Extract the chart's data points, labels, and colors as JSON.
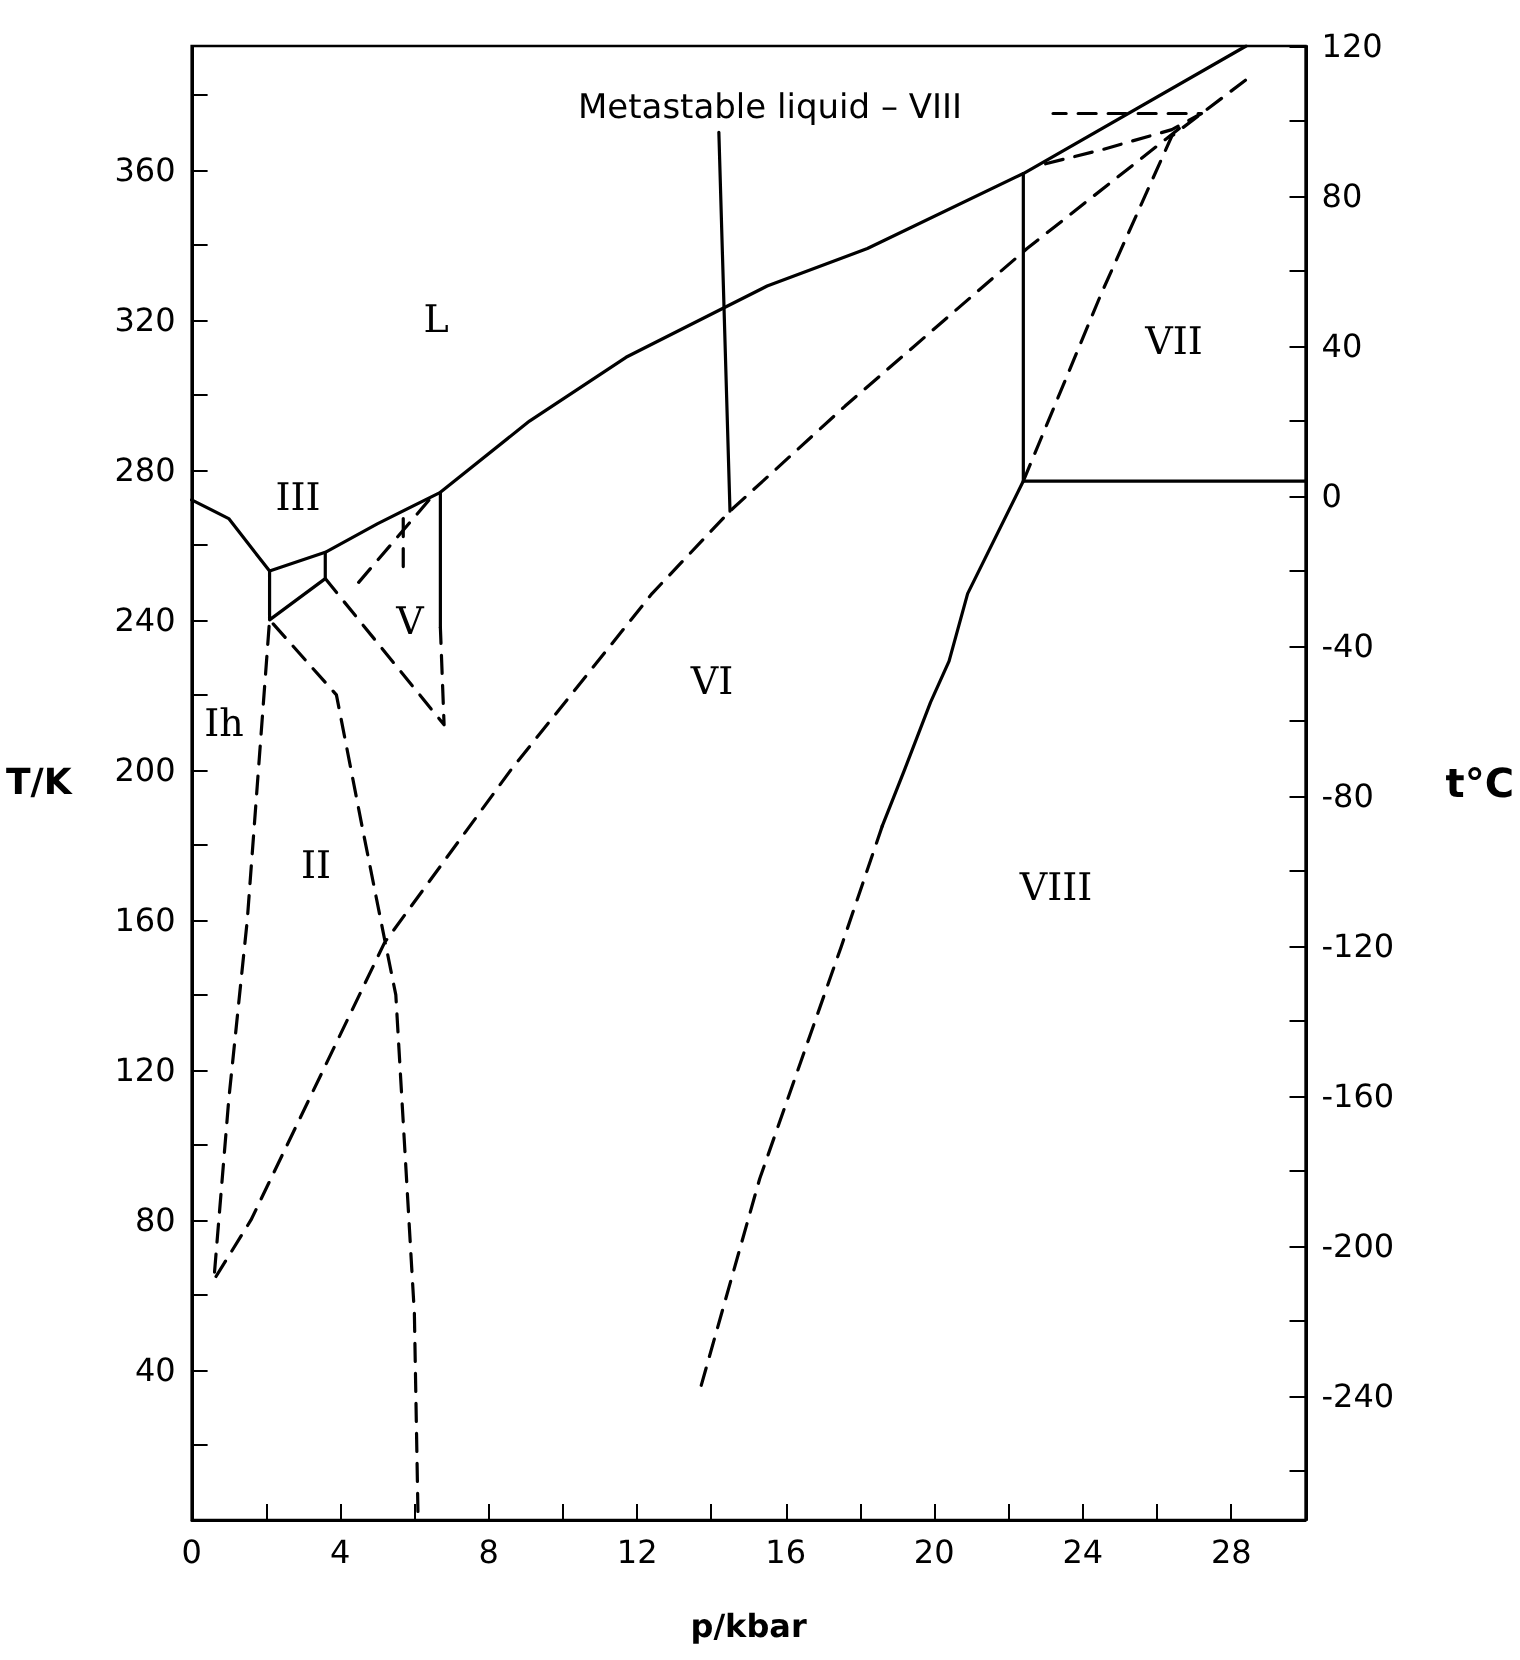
{
  "chart_data": {
    "type": "line",
    "xlabel": "p/kbar",
    "ylabel": "T/K",
    "y2label": "t°C",
    "xlim": [
      0,
      30
    ],
    "ylim": [
      0,
      393
    ],
    "y2lim": [
      -273,
      120
    ],
    "xticks": [
      0,
      {
        "value": 2,
        "label": null
      },
      4,
      {
        "value": 6,
        "label": null
      },
      8,
      {
        "value": 10,
        "label": null
      },
      12,
      {
        "value": 14,
        "label": null
      },
      16,
      {
        "value": 18,
        "label": null
      },
      20,
      {
        "value": 22,
        "label": null
      },
      24,
      {
        "value": 26,
        "label": null
      },
      28
    ],
    "yticks": [
      {
        "value": 20,
        "label": null
      },
      40,
      {
        "value": 60,
        "label": null
      },
      80,
      {
        "value": 100,
        "label": null
      },
      120,
      {
        "value": 140,
        "label": null
      },
      160,
      {
        "value": 180,
        "label": null
      },
      200,
      {
        "value": 220,
        "label": null
      },
      240,
      {
        "value": 260,
        "label": null
      },
      280,
      {
        "value": 300,
        "label": null
      },
      320,
      {
        "value": 340,
        "label": null
      },
      360,
      {
        "value": 380,
        "label": null
      }
    ],
    "y2ticks": [
      {
        "value": -260,
        "label": null
      },
      -240,
      {
        "value": -220,
        "label": null
      },
      -200,
      {
        "value": -180,
        "label": null
      },
      -160,
      {
        "value": -140,
        "label": null
      },
      -120,
      {
        "value": -100,
        "label": null
      },
      -80,
      {
        "value": -60,
        "label": null
      },
      -40,
      {
        "value": -20,
        "label": null
      },
      0,
      {
        "value": 20,
        "label": null
      },
      40,
      {
        "value": 60,
        "label": null
      },
      80,
      {
        "value": 100,
        "label": null
      },
      120
    ],
    "grid": false,
    "marker": "none",
    "series": [
      {
        "color": "#000000",
        "line_style": "solid",
        "x": [
          0,
          1,
          2.1,
          3.6,
          5.0,
          6.7,
          9.1,
          11.7,
          14.3,
          15.5,
          18.2,
          22.4,
          28.4
        ],
        "values": [
          272,
          267,
          253,
          258,
          265.6,
          274,
          293,
          310,
          323,
          329,
          339,
          359,
          393
        ]
      },
      {
        "color": "#000000",
        "line_style": "solid",
        "x": [
          2.1,
          2.1,
          3.6,
          3.6
        ],
        "values": [
          253,
          240,
          251,
          258
        ]
      },
      {
        "color": "#000000",
        "line_style": "solid",
        "x": [
          22.4,
          22.4,
          20.9,
          20.4,
          19.9,
          19.2,
          18.6
        ],
        "values": [
          359,
          277,
          247,
          229,
          218,
          200,
          185
        ]
      },
      {
        "color": "#000000",
        "line_style": "solid",
        "x": [
          22.4,
          30
        ],
        "values": [
          277,
          277
        ]
      },
      {
        "color": "#000000",
        "line_style": "solid",
        "x": [
          6.7,
          6.7
        ],
        "values": [
          274,
          238
        ]
      },
      {
        "color": "#000000",
        "line_style": "solid",
        "x": [
          14.2,
          14.5
        ],
        "values": [
          370,
          269
        ]
      },
      {
        "color": "#000000",
        "line_style": "dashed",
        "x": [
          3.6,
          6.8,
          6.7
        ],
        "values": [
          251,
          212,
          238
        ]
      },
      {
        "color": "#000000",
        "line_style": "dashed",
        "x": [
          4.5,
          6.4
        ],
        "values": [
          250,
          272
        ]
      },
      {
        "color": "#000000",
        "line_style": "dashed",
        "x": [
          5.7,
          5.7
        ],
        "values": [
          267,
          254
        ]
      },
      {
        "color": "#000000",
        "line_style": "dashed",
        "x": [
          18.6,
          17.5,
          15.3,
          13.7
        ],
        "values": [
          185,
          153,
          91,
          35
        ]
      },
      {
        "color": "#000000",
        "line_style": "dashed",
        "x": [
          26.6,
          22.5,
          17.6,
          14.5,
          12.4,
          8.6,
          5.2,
          1.6,
          0.6,
          1.0,
          1.5,
          2.1,
          3.9,
          4.6,
          5.2,
          5.5,
          6.0,
          6.1
        ],
        "values": [
          371,
          339,
          297,
          269,
          247,
          200,
          154,
          80,
          64,
          112,
          160,
          240,
          220,
          184.5,
          154.7,
          140,
          55,
          0
        ]
      },
      {
        "color": "#000000",
        "line_style": "dashed",
        "x": [
          22.4,
          24.5,
          26.4,
          28.4
        ],
        "values": [
          277,
          327,
          369,
          384
        ]
      },
      {
        "color": "#000000",
        "line_style": "dashed",
        "x": [
          23.0,
          24.5,
          26.4,
          27.2,
          23.2
        ],
        "values": [
          361.6,
          365.3,
          370.7,
          375,
          375
        ]
      }
    ],
    "annotations": [
      "L",
      "III",
      "V",
      "VI",
      "Ih",
      "II",
      "VIII",
      "VII",
      "Metastable liquid – VIII"
    ]
  }
}
